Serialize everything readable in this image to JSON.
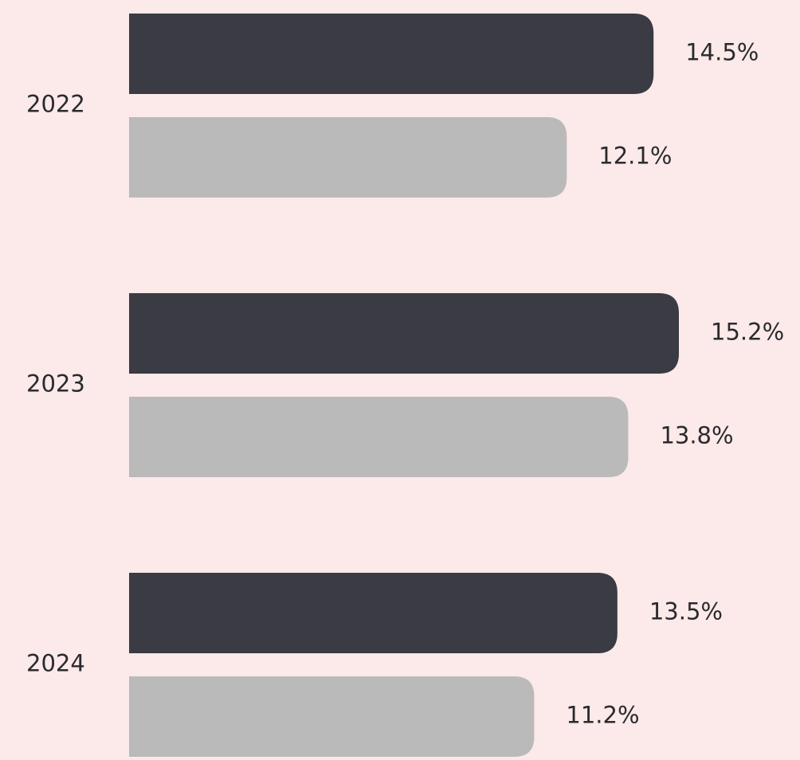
{
  "chart_data": {
    "type": "bar",
    "orientation": "horizontal",
    "categories": [
      "2022",
      "2023",
      "2024"
    ],
    "series": [
      {
        "color": "#3a3b43",
        "values": [
          14.5,
          15.2,
          13.5
        ],
        "value_labels": [
          "14.5%",
          "15.2%",
          "13.5%"
        ]
      },
      {
        "color": "#bbbaba",
        "values": [
          12.1,
          13.8,
          11.2
        ],
        "value_labels": [
          "12.1%",
          "13.8%",
          "11.2%"
        ]
      }
    ]
  }
}
